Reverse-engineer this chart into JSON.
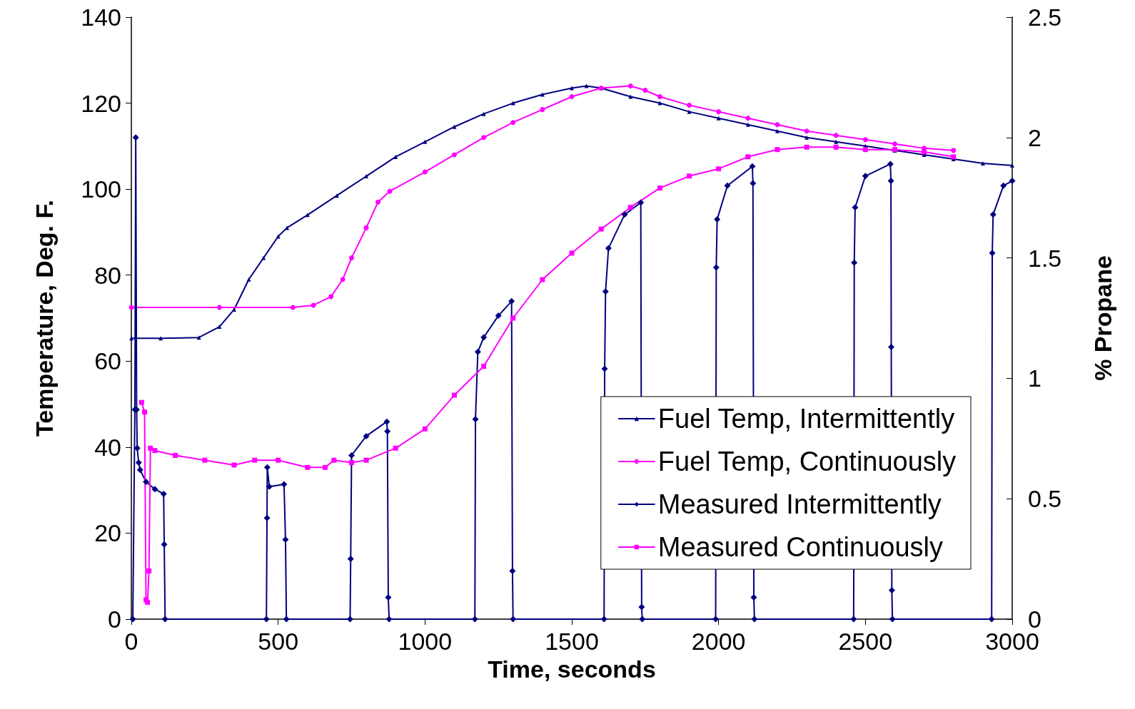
{
  "chart_data": {
    "type": "line",
    "xlabel": "Time, seconds",
    "ylabel": "Temperature, Deg. F.",
    "y2label": "% Propane",
    "xlim": [
      0,
      3000
    ],
    "xticks": [
      0,
      500,
      1000,
      1500,
      2000,
      2500,
      3000
    ],
    "ylim": [
      0,
      140
    ],
    "yticks": [
      0,
      20,
      40,
      60,
      80,
      100,
      120,
      140
    ],
    "y2lim": [
      0,
      2.5
    ],
    "y2ticks": [
      0,
      0.5,
      1,
      1.5,
      2,
      2.5
    ],
    "grid": false,
    "legend": "bottom right",
    "line_style": "solid",
    "series": [
      {
        "name": "Fuel Temp, Intermittently",
        "color": "#000080",
        "marker": "triangle",
        "x": [
          0,
          100,
          230,
          300,
          350,
          400,
          450,
          500,
          530,
          600,
          700,
          800,
          900,
          1000,
          1100,
          1200,
          1300,
          1400,
          1500,
          1550,
          1600,
          1700,
          1800,
          1900,
          2000,
          2100,
          2200,
          2300,
          2400,
          2500,
          2600,
          2700,
          2800,
          2900,
          3000
        ],
        "values": [
          65.3,
          65.3,
          65.5,
          68,
          72,
          79,
          84,
          89,
          91,
          94,
          98.5,
          103,
          107.5,
          111,
          114.5,
          117.5,
          120,
          122,
          123.5,
          124,
          123.5,
          121.5,
          120,
          118,
          116.5,
          115,
          113.5,
          112,
          111,
          110,
          109,
          108,
          107,
          106,
          105.5
        ]
      },
      {
        "name": "Fuel Temp, Continuously",
        "color": "#ff00ff",
        "marker": "circle",
        "x": [
          0,
          300,
          550,
          620,
          680,
          720,
          750,
          800,
          840,
          880,
          1000,
          1100,
          1200,
          1300,
          1400,
          1500,
          1600,
          1700,
          1750,
          1800,
          1900,
          2000,
          2100,
          2200,
          2300,
          2400,
          2500,
          2600,
          2700,
          2800
        ],
        "values": [
          72.5,
          72.5,
          72.5,
          73,
          75,
          79,
          84,
          91,
          97,
          99.5,
          104,
          108,
          112,
          115.5,
          118.5,
          121.5,
          123.5,
          124,
          123,
          121.5,
          119.5,
          118,
          116.5,
          115,
          113.5,
          112.5,
          111.5,
          110.5,
          109.5,
          109
        ]
      },
      {
        "name": "Measured Intermittently",
        "color": "#000080",
        "marker": "diamond",
        "axis": "y2",
        "x": [
          5,
          12,
          15,
          18,
          20,
          25,
          30,
          50,
          80,
          110,
          112,
          115,
          460,
          462,
          463,
          470,
          520,
          525,
          528,
          745,
          747,
          750,
          800,
          870,
          872,
          875,
          878,
          1170,
          1172,
          1180,
          1200,
          1250,
          1295,
          1298,
          1300,
          1610,
          1612,
          1615,
          1625,
          1680,
          1735,
          1738,
          1740,
          1990,
          1992,
          1995,
          2030,
          2115,
          2117,
          2120,
          2122,
          2460,
          2462,
          2465,
          2500,
          2585,
          2587,
          2588,
          2590,
          2592,
          2930,
          2932,
          2935,
          2970,
          3000
        ],
        "values": [
          0,
          0.87,
          2.0,
          0.87,
          0.71,
          0.65,
          0.62,
          0.57,
          0.54,
          0.52,
          0.31,
          0,
          0,
          0.42,
          0.63,
          0.55,
          0.56,
          0.33,
          0,
          0,
          0.25,
          0.68,
          0.76,
          0.82,
          0.78,
          0.09,
          0,
          0,
          0.83,
          1.11,
          1.17,
          1.26,
          1.32,
          0.2,
          0,
          0,
          1.04,
          1.36,
          1.54,
          1.68,
          1.73,
          0.05,
          0,
          0,
          1.46,
          1.66,
          1.8,
          1.88,
          1.81,
          0.09,
          0,
          0,
          1.48,
          1.71,
          1.84,
          1.89,
          1.82,
          1.13,
          0.12,
          0,
          0,
          1.52,
          1.68,
          1.8,
          1.82
        ]
      },
      {
        "name": "Measured Continuously",
        "color": "#ff00ff",
        "marker": "square",
        "axis": "y2",
        "x": [
          35,
          45,
          50,
          55,
          60,
          65,
          80,
          150,
          250,
          350,
          420,
          500,
          600,
          660,
          690,
          750,
          800,
          900,
          1000,
          1100,
          1200,
          1300,
          1400,
          1500,
          1600,
          1700,
          1800,
          1900,
          2000,
          2100,
          2200,
          2300,
          2400,
          2500,
          2600,
          2700,
          2800
        ],
        "values": [
          0.9,
          0.86,
          0.08,
          0.07,
          0.2,
          0.71,
          0.7,
          0.68,
          0.66,
          0.64,
          0.66,
          0.66,
          0.63,
          0.63,
          0.66,
          0.65,
          0.66,
          0.71,
          0.79,
          0.93,
          1.05,
          1.25,
          1.41,
          1.52,
          1.62,
          1.71,
          1.79,
          1.84,
          1.87,
          1.92,
          1.95,
          1.96,
          1.96,
          1.95,
          1.95,
          1.94,
          1.92
        ]
      }
    ]
  }
}
